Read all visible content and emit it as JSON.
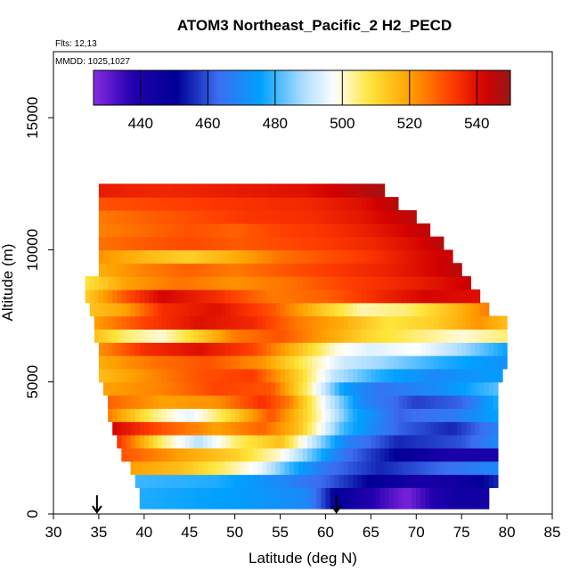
{
  "chart_data": {
    "type": "heatmap",
    "title": "ATOM3 Northeast_Pacific_2 H2_PECD",
    "meta_flights": "Flts: 12,13",
    "meta_dates": "MMDD: 1025,1027",
    "xlabel": "Latitude (deg N)",
    "ylabel": "Altitude (m)",
    "xlim": [
      30,
      85
    ],
    "ylim": [
      0,
      17500
    ],
    "x_ticks": [
      "30",
      "35",
      "40",
      "45",
      "50",
      "55",
      "60",
      "65",
      "70",
      "75",
      "80",
      "85"
    ],
    "y_ticks": [
      "0",
      "5000",
      "10000",
      "15000"
    ],
    "colorbar": {
      "range": [
        426,
        550
      ],
      "tick_values": [
        440,
        460,
        480,
        500,
        520,
        540
      ],
      "tick_labels": [
        "440",
        "460",
        "480",
        "500",
        "520",
        "540"
      ]
    },
    "arrow_markers_lat": [
      34.8,
      61.2
    ],
    "bands": [
      {
        "y0": 200,
        "y1": 1000,
        "lat_min": 39.5,
        "lat_max": 78.0,
        "stops": [
          [
            39.5,
            478
          ],
          [
            50,
            475
          ],
          [
            58,
            470
          ],
          [
            61,
            450
          ],
          [
            66,
            435
          ],
          [
            69,
            428
          ],
          [
            72,
            438
          ],
          [
            75,
            445
          ],
          [
            78,
            442
          ]
        ]
      },
      {
        "y0": 1000,
        "y1": 1500,
        "lat_min": 39.0,
        "lat_max": 79.0,
        "stops": [
          [
            39,
            480
          ],
          [
            48,
            478
          ],
          [
            55,
            470
          ],
          [
            60,
            462
          ],
          [
            65,
            450
          ],
          [
            70,
            442
          ],
          [
            75,
            445
          ],
          [
            79,
            455
          ]
        ]
      },
      {
        "y0": 1500,
        "y1": 2000,
        "lat_min": 38.5,
        "lat_max": 79.0,
        "stops": [
          [
            38.5,
            520
          ],
          [
            44,
            515
          ],
          [
            49,
            505
          ],
          [
            53,
            495
          ],
          [
            56,
            480
          ],
          [
            60,
            465
          ],
          [
            66,
            455
          ],
          [
            72,
            462
          ],
          [
            79,
            470
          ]
        ]
      },
      {
        "y0": 2000,
        "y1": 2500,
        "lat_min": 37.5,
        "lat_max": 79.0,
        "stops": [
          [
            37.5,
            530
          ],
          [
            44,
            520
          ],
          [
            50,
            512
          ],
          [
            55,
            500
          ],
          [
            58,
            485
          ],
          [
            62,
            465
          ],
          [
            68,
            450
          ],
          [
            74,
            440
          ],
          [
            79,
            442
          ]
        ]
      },
      {
        "y0": 2500,
        "y1": 3000,
        "lat_min": 37.0,
        "lat_max": 79.0,
        "stops": [
          [
            37,
            535
          ],
          [
            42,
            505
          ],
          [
            46,
            490
          ],
          [
            50,
            505
          ],
          [
            55,
            515
          ],
          [
            58,
            495
          ],
          [
            62,
            470
          ],
          [
            68,
            455
          ],
          [
            75,
            460
          ],
          [
            79,
            470
          ]
        ]
      },
      {
        "y0": 3000,
        "y1": 3500,
        "lat_min": 36.5,
        "lat_max": 79.0,
        "stops": [
          [
            36.5,
            542
          ],
          [
            42,
            530
          ],
          [
            48,
            520
          ],
          [
            53,
            528
          ],
          [
            57,
            515
          ],
          [
            62,
            480
          ],
          [
            68,
            462
          ],
          [
            74,
            455
          ],
          [
            79,
            468
          ]
        ]
      },
      {
        "y0": 3500,
        "y1": 4000,
        "lat_min": 36.0,
        "lat_max": 79.0,
        "stops": [
          [
            36,
            525
          ],
          [
            41,
            505
          ],
          [
            45,
            495
          ],
          [
            50,
            512
          ],
          [
            54,
            530
          ],
          [
            58,
            510
          ],
          [
            63,
            478
          ],
          [
            68,
            462
          ],
          [
            74,
            466
          ],
          [
            79,
            476
          ]
        ]
      },
      {
        "y0": 4000,
        "y1": 4500,
        "lat_min": 36.0,
        "lat_max": 79.0,
        "stops": [
          [
            36,
            528
          ],
          [
            42,
            520
          ],
          [
            48,
            522
          ],
          [
            53,
            535
          ],
          [
            56,
            525
          ],
          [
            60,
            495
          ],
          [
            64,
            470
          ],
          [
            70,
            458
          ],
          [
            75,
            462
          ],
          [
            79,
            478
          ]
        ]
      },
      {
        "y0": 4500,
        "y1": 5000,
        "lat_min": 35.5,
        "lat_max": 79.0,
        "stops": [
          [
            35.5,
            520
          ],
          [
            42,
            524
          ],
          [
            48,
            532
          ],
          [
            54,
            530
          ],
          [
            58,
            505
          ],
          [
            62,
            475
          ],
          [
            66,
            465
          ],
          [
            72,
            470
          ],
          [
            79,
            482
          ]
        ]
      },
      {
        "y0": 5000,
        "y1": 5500,
        "lat_min": 35.0,
        "lat_max": 79.5,
        "stops": [
          [
            35,
            515
          ],
          [
            40,
            522
          ],
          [
            46,
            530
          ],
          [
            52,
            533
          ],
          [
            57,
            512
          ],
          [
            61,
            490
          ],
          [
            66,
            478
          ],
          [
            72,
            470
          ],
          [
            79.5,
            475
          ]
        ]
      },
      {
        "y0": 5500,
        "y1": 6000,
        "lat_min": 35.0,
        "lat_max": 80.0,
        "stops": [
          [
            35,
            518
          ],
          [
            41,
            526
          ],
          [
            47,
            530
          ],
          [
            53,
            522
          ],
          [
            58,
            505
          ],
          [
            62,
            492
          ],
          [
            67,
            486
          ],
          [
            73,
            478
          ],
          [
            80,
            472
          ]
        ]
      },
      {
        "y0": 6000,
        "y1": 6500,
        "lat_min": 35.0,
        "lat_max": 80.0,
        "stops": [
          [
            35,
            522
          ],
          [
            40,
            535
          ],
          [
            46,
            540
          ],
          [
            52,
            532
          ],
          [
            57,
            515
          ],
          [
            61,
            500
          ],
          [
            65,
            494
          ],
          [
            70,
            498
          ],
          [
            75,
            488
          ],
          [
            80,
            476
          ]
        ]
      },
      {
        "y0": 6500,
        "y1": 7000,
        "lat_min": 34.5,
        "lat_max": 80.0,
        "stops": [
          [
            34.5,
            515
          ],
          [
            38,
            505
          ],
          [
            42,
            500
          ],
          [
            46,
            512
          ],
          [
            50,
            525
          ],
          [
            55,
            530
          ],
          [
            60,
            520
          ],
          [
            65,
            510
          ],
          [
            70,
            505
          ],
          [
            75,
            500
          ],
          [
            80,
            505
          ]
        ]
      },
      {
        "y0": 7000,
        "y1": 7500,
        "lat_min": 34.5,
        "lat_max": 80.0,
        "stops": [
          [
            34.5,
            520
          ],
          [
            40,
            532
          ],
          [
            46,
            540
          ],
          [
            52,
            536
          ],
          [
            57,
            525
          ],
          [
            62,
            518
          ],
          [
            67,
            508
          ],
          [
            72,
            512
          ],
          [
            77,
            522
          ],
          [
            80,
            515
          ]
        ]
      },
      {
        "y0": 7500,
        "y1": 8000,
        "lat_min": 34.0,
        "lat_max": 78.0,
        "stops": [
          [
            34,
            514
          ],
          [
            38,
            520
          ],
          [
            42,
            535
          ],
          [
            48,
            540
          ],
          [
            54,
            530
          ],
          [
            60,
            512
          ],
          [
            64,
            502
          ],
          [
            69,
            505
          ],
          [
            74,
            515
          ],
          [
            78,
            525
          ]
        ]
      },
      {
        "y0": 8000,
        "y1": 8500,
        "lat_min": 33.5,
        "lat_max": 77.0,
        "stops": [
          [
            33.5,
            512
          ],
          [
            38,
            530
          ],
          [
            42,
            542
          ],
          [
            48,
            535
          ],
          [
            54,
            525
          ],
          [
            60,
            528
          ],
          [
            66,
            536
          ],
          [
            71,
            542
          ],
          [
            77,
            540
          ]
        ]
      },
      {
        "y0": 8500,
        "y1": 9000,
        "lat_min": 33.5,
        "lat_max": 76.0,
        "stops": [
          [
            33.5,
            508
          ],
          [
            38,
            520
          ],
          [
            44,
            526
          ],
          [
            50,
            522
          ],
          [
            56,
            526
          ],
          [
            62,
            532
          ],
          [
            68,
            536
          ],
          [
            73,
            540
          ],
          [
            76,
            544
          ]
        ]
      },
      {
        "y0": 9000,
        "y1": 9500,
        "lat_min": 35.0,
        "lat_max": 75.0,
        "stops": [
          [
            35,
            518
          ],
          [
            40,
            524
          ],
          [
            45,
            528
          ],
          [
            50,
            525
          ],
          [
            56,
            530
          ],
          [
            62,
            534
          ],
          [
            68,
            538
          ],
          [
            72,
            542
          ],
          [
            75,
            546
          ]
        ]
      },
      {
        "y0": 9500,
        "y1": 10000,
        "lat_min": 35.0,
        "lat_max": 74.0,
        "stops": [
          [
            35,
            522
          ],
          [
            40,
            516
          ],
          [
            45,
            512
          ],
          [
            50,
            518
          ],
          [
            55,
            526
          ],
          [
            60,
            530
          ],
          [
            65,
            534
          ],
          [
            70,
            540
          ],
          [
            74,
            544
          ]
        ]
      },
      {
        "y0": 10000,
        "y1": 10500,
        "lat_min": 35.0,
        "lat_max": 73.0,
        "stops": [
          [
            35,
            526
          ],
          [
            40,
            529
          ],
          [
            45,
            531
          ],
          [
            50,
            529
          ],
          [
            55,
            531
          ],
          [
            60,
            533
          ],
          [
            65,
            536
          ],
          [
            70,
            541
          ],
          [
            73,
            546
          ]
        ]
      },
      {
        "y0": 10500,
        "y1": 11000,
        "lat_min": 35.0,
        "lat_max": 71.5,
        "stops": [
          [
            35,
            524
          ],
          [
            40,
            527
          ],
          [
            45,
            530
          ],
          [
            50,
            528
          ],
          [
            55,
            532
          ],
          [
            60,
            534
          ],
          [
            65,
            538
          ],
          [
            71.5,
            545
          ]
        ]
      },
      {
        "y0": 11000,
        "y1": 11500,
        "lat_min": 35.0,
        "lat_max": 70.0,
        "stops": [
          [
            35,
            525
          ],
          [
            40,
            528
          ],
          [
            46,
            531
          ],
          [
            52,
            534
          ],
          [
            58,
            535
          ],
          [
            64,
            539
          ],
          [
            70,
            546
          ]
        ]
      },
      {
        "y0": 11500,
        "y1": 12000,
        "lat_min": 35.0,
        "lat_max": 68.0,
        "stops": [
          [
            35,
            530
          ],
          [
            42,
            532
          ],
          [
            50,
            534
          ],
          [
            58,
            536
          ],
          [
            64,
            540
          ],
          [
            68,
            546
          ]
        ]
      },
      {
        "y0": 12000,
        "y1": 12500,
        "lat_min": 35.0,
        "lat_max": 66.5,
        "stops": [
          [
            35,
            538
          ],
          [
            42,
            536
          ],
          [
            50,
            538
          ],
          [
            58,
            540
          ],
          [
            66.5,
            548
          ]
        ]
      }
    ]
  }
}
